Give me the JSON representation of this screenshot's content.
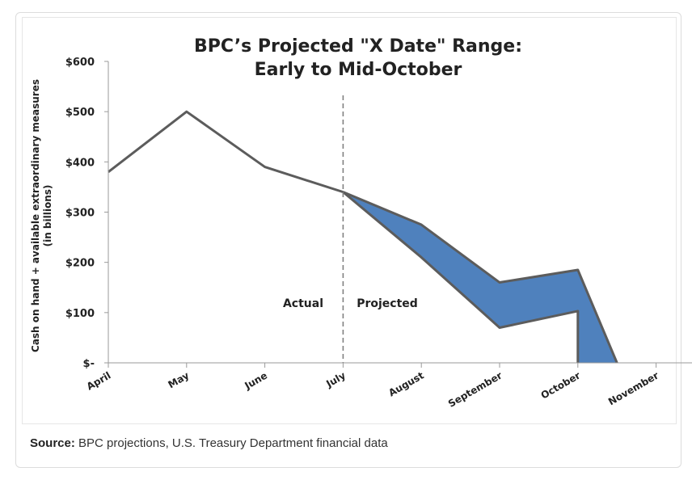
{
  "chart_data": {
    "type": "line",
    "title": "BPC’s Projected \"X Date\" Range:",
    "subtitle": "Early to Mid-October",
    "xlabel": "",
    "ylabel": "Cash on hand + available extraordinary measures",
    "ylabel_sub": "(in billions)",
    "categories": [
      "April",
      "May",
      "June",
      "July",
      "August",
      "September",
      "October",
      "November"
    ],
    "yticks": [
      "$600",
      "$500",
      "$400",
      "$300",
      "$200",
      "$100",
      "$-"
    ],
    "ylim": [
      0,
      600
    ],
    "grid": false,
    "actual": {
      "x": [
        "April",
        "May",
        "June",
        "July"
      ],
      "values": [
        380,
        500,
        390,
        340
      ]
    },
    "projected_upper": {
      "x": [
        3,
        4,
        5,
        6,
        6.5
      ],
      "values": [
        340,
        275,
        160,
        185,
        0
      ]
    },
    "projected_lower": {
      "x": [
        3,
        4,
        5,
        6,
        6
      ],
      "values": [
        340,
        210,
        70,
        103,
        0
      ]
    },
    "divider_at": "July",
    "annotations": {
      "actual": "Actual",
      "projected": "Projected"
    },
    "colors": {
      "line": "#5c5c5c",
      "fill": "#4f81bd",
      "divider": "#808080"
    }
  },
  "caption": {
    "label": "Source:",
    "text": " BPC projections, U.S. Treasury Department financial data"
  }
}
